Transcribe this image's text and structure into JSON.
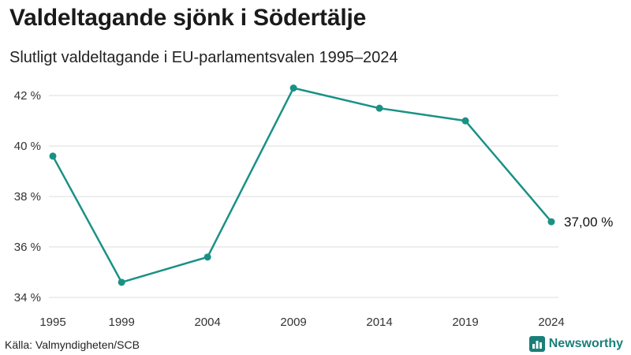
{
  "header": {
    "title": "Valdeltagande sjönk i Södertälje",
    "subtitle": "Slutligt valdeltagande i EU-parlamentsvalen 1995–2024"
  },
  "footer": {
    "source": "Källa: Valmyndigheten/SCB",
    "brand": "Newsworthy",
    "brand_icon": "bar-chart-logo-icon"
  },
  "colors": {
    "line": "#1a9185",
    "grid": "#dddddd",
    "brand": "#1a7f79"
  },
  "chart_data": {
    "type": "line",
    "title": "Valdeltagande sjönk i Södertälje",
    "subtitle": "Slutligt valdeltagande i EU-parlamentsvalen 1995–2024",
    "xlabel": "",
    "ylabel": "",
    "x": [
      1995,
      1999,
      2004,
      2009,
      2014,
      2019,
      2024
    ],
    "x_tick_labels": [
      "1995",
      "1999",
      "2004",
      "2009",
      "2014",
      "2019",
      "2024"
    ],
    "series": [
      {
        "name": "Valdeltagande",
        "values": [
          39.6,
          34.6,
          35.6,
          42.3,
          41.5,
          41.0,
          37.0
        ]
      }
    ],
    "ylim": [
      34,
      42.6
    ],
    "y_ticks": [
      34,
      36,
      38,
      40,
      42
    ],
    "y_tick_labels": [
      "34 %",
      "36 %",
      "38 %",
      "40 %",
      "42 %"
    ],
    "grid": true,
    "end_label": "37,00 %"
  }
}
